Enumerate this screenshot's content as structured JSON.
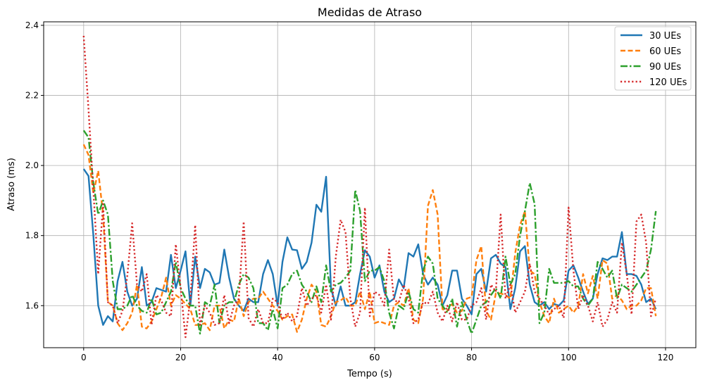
{
  "chart_data": {
    "type": "line",
    "title": "Medidas de Atraso",
    "xlabel": "Tempo (s)",
    "ylabel": "Atraso (ms)",
    "xlim": [
      -8.25,
      126.25
    ],
    "ylim": [
      1.48,
      2.41
    ],
    "xticks": [
      0,
      20,
      40,
      60,
      80,
      100,
      120
    ],
    "yticks": [
      1.6,
      1.8,
      2.0,
      2.2,
      2.4
    ],
    "grid": true,
    "legend_position": "top-right",
    "x": [
      0,
      1,
      2,
      3,
      4,
      5,
      6,
      7,
      8,
      9,
      10,
      11,
      12,
      13,
      14,
      15,
      16,
      17,
      18,
      19,
      20,
      21,
      22,
      23,
      24,
      25,
      26,
      27,
      28,
      29,
      30,
      31,
      32,
      33,
      34,
      35,
      36,
      37,
      38,
      39,
      40,
      41,
      42,
      43,
      44,
      45,
      46,
      47,
      48,
      49,
      50,
      51,
      52,
      53,
      54,
      55,
      56,
      57,
      58,
      59,
      60,
      61,
      62,
      63,
      64,
      65,
      66,
      67,
      68,
      69,
      70,
      71,
      72,
      73,
      74,
      75,
      76,
      77,
      78,
      79,
      80,
      81,
      82,
      83,
      84,
      85,
      86,
      87,
      88,
      89,
      90,
      91,
      92,
      93,
      94,
      95,
      96,
      97,
      98,
      99,
      100,
      101,
      102,
      103,
      104,
      105,
      106,
      107,
      108,
      109,
      110,
      111,
      112,
      113,
      114,
      115,
      116,
      117,
      118
    ],
    "series": [
      {
        "name": "30 UEs",
        "color": "#1f77b4",
        "dash": "solid",
        "values": [
          1.99,
          1.97,
          1.8,
          1.6,
          1.545,
          1.57,
          1.555,
          1.67,
          1.725,
          1.64,
          1.6,
          1.62,
          1.71,
          1.6,
          1.61,
          1.65,
          1.645,
          1.64,
          1.745,
          1.65,
          1.7,
          1.755,
          1.6,
          1.74,
          1.65,
          1.705,
          1.695,
          1.66,
          1.665,
          1.76,
          1.68,
          1.62,
          1.6,
          1.585,
          1.62,
          1.61,
          1.61,
          1.69,
          1.73,
          1.69,
          1.6,
          1.725,
          1.795,
          1.76,
          1.758,
          1.705,
          1.725,
          1.78,
          1.888,
          1.868,
          1.968,
          1.65,
          1.6,
          1.655,
          1.6,
          1.6,
          1.61,
          1.69,
          1.758,
          1.74,
          1.68,
          1.715,
          1.64,
          1.61,
          1.62,
          1.675,
          1.65,
          1.75,
          1.74,
          1.775,
          1.69,
          1.66,
          1.68,
          1.66,
          1.6,
          1.63,
          1.7,
          1.7,
          1.62,
          1.6,
          1.575,
          1.69,
          1.705,
          1.64,
          1.735,
          1.745,
          1.72,
          1.71,
          1.59,
          1.65,
          1.755,
          1.77,
          1.66,
          1.61,
          1.6,
          1.61,
          1.59,
          1.605,
          1.6,
          1.615,
          1.7,
          1.715,
          1.68,
          1.64,
          1.605,
          1.62,
          1.69,
          1.735,
          1.73,
          1.74,
          1.74,
          1.81,
          1.69,
          1.69,
          1.685,
          1.66,
          1.61,
          1.62,
          1.59
        ]
      },
      {
        "name": "60 UEs",
        "color": "#ff7f0e",
        "dash": "dashed",
        "values": [
          2.06,
          2.03,
          1.92,
          1.985,
          1.86,
          1.61,
          1.6,
          1.55,
          1.53,
          1.55,
          1.58,
          1.66,
          1.54,
          1.535,
          1.555,
          1.59,
          1.625,
          1.68,
          1.6,
          1.63,
          1.62,
          1.605,
          1.59,
          1.545,
          1.545,
          1.55,
          1.53,
          1.6,
          1.6,
          1.535,
          1.56,
          1.555,
          1.62,
          1.57,
          1.61,
          1.62,
          1.62,
          1.64,
          1.62,
          1.6,
          1.585,
          1.56,
          1.57,
          1.575,
          1.525,
          1.56,
          1.62,
          1.66,
          1.64,
          1.545,
          1.54,
          1.57,
          1.61,
          1.615,
          1.625,
          1.6,
          1.6,
          1.64,
          1.59,
          1.64,
          1.55,
          1.555,
          1.55,
          1.545,
          1.6,
          1.61,
          1.6,
          1.65,
          1.56,
          1.55,
          1.62,
          1.885,
          1.93,
          1.86,
          1.59,
          1.585,
          1.605,
          1.58,
          1.585,
          1.62,
          1.625,
          1.73,
          1.77,
          1.585,
          1.56,
          1.635,
          1.635,
          1.63,
          1.62,
          1.75,
          1.83,
          1.87,
          1.7,
          1.69,
          1.61,
          1.57,
          1.55,
          1.62,
          1.58,
          1.59,
          1.6,
          1.58,
          1.6,
          1.69,
          1.635,
          1.685,
          1.62,
          1.73,
          1.72,
          1.62,
          1.63,
          1.615,
          1.59,
          1.6,
          1.6,
          1.615,
          1.65,
          1.65,
          1.57
        ]
      },
      {
        "name": "90 UEs",
        "color": "#2ca02c",
        "dash": "dashdot",
        "values": [
          2.1,
          2.08,
          1.95,
          1.86,
          1.9,
          1.86,
          1.67,
          1.59,
          1.59,
          1.6,
          1.63,
          1.6,
          1.585,
          1.58,
          1.62,
          1.575,
          1.58,
          1.61,
          1.64,
          1.725,
          1.65,
          1.62,
          1.6,
          1.6,
          1.52,
          1.61,
          1.6,
          1.66,
          1.55,
          1.6,
          1.61,
          1.61,
          1.66,
          1.69,
          1.68,
          1.65,
          1.55,
          1.55,
          1.53,
          1.59,
          1.535,
          1.65,
          1.66,
          1.69,
          1.7,
          1.66,
          1.64,
          1.61,
          1.655,
          1.61,
          1.715,
          1.64,
          1.66,
          1.665,
          1.68,
          1.7,
          1.93,
          1.87,
          1.67,
          1.7,
          1.7,
          1.71,
          1.67,
          1.58,
          1.535,
          1.6,
          1.59,
          1.64,
          1.59,
          1.58,
          1.7,
          1.74,
          1.72,
          1.62,
          1.6,
          1.58,
          1.62,
          1.54,
          1.61,
          1.56,
          1.52,
          1.56,
          1.6,
          1.61,
          1.63,
          1.65,
          1.62,
          1.74,
          1.66,
          1.69,
          1.8,
          1.87,
          1.95,
          1.89,
          1.55,
          1.58,
          1.705,
          1.665,
          1.665,
          1.665,
          1.67,
          1.655,
          1.655,
          1.62,
          1.6,
          1.62,
          1.725,
          1.705,
          1.68,
          1.7,
          1.62,
          1.66,
          1.65,
          1.64,
          1.66,
          1.68,
          1.7,
          1.76,
          1.87
        ]
      },
      {
        "name": "120 UEs",
        "color": "#d62728",
        "dash": "dotted",
        "values": [
          2.37,
          2.16,
          1.93,
          1.69,
          1.89,
          1.61,
          1.6,
          1.55,
          1.585,
          1.685,
          1.835,
          1.66,
          1.64,
          1.69,
          1.545,
          1.63,
          1.615,
          1.58,
          1.57,
          1.775,
          1.65,
          1.51,
          1.62,
          1.83,
          1.545,
          1.6,
          1.58,
          1.545,
          1.55,
          1.63,
          1.55,
          1.6,
          1.62,
          1.84,
          1.565,
          1.54,
          1.59,
          1.55,
          1.55,
          1.62,
          1.61,
          1.56,
          1.58,
          1.555,
          1.57,
          1.65,
          1.6,
          1.62,
          1.63,
          1.58,
          1.66,
          1.56,
          1.74,
          1.845,
          1.81,
          1.62,
          1.54,
          1.58,
          1.88,
          1.57,
          1.64,
          1.63,
          1.6,
          1.76,
          1.615,
          1.61,
          1.66,
          1.62,
          1.55,
          1.56,
          1.61,
          1.605,
          1.64,
          1.58,
          1.555,
          1.6,
          1.555,
          1.61,
          1.56,
          1.56,
          1.6,
          1.61,
          1.65,
          1.56,
          1.66,
          1.64,
          1.86,
          1.62,
          1.66,
          1.58,
          1.61,
          1.64,
          1.72,
          1.64,
          1.62,
          1.6,
          1.575,
          1.59,
          1.6,
          1.565,
          1.88,
          1.7,
          1.59,
          1.63,
          1.6,
          1.555,
          1.61,
          1.54,
          1.56,
          1.61,
          1.58,
          1.78,
          1.69,
          1.575,
          1.84,
          1.86,
          1.78,
          1.57,
          1.62
        ]
      }
    ]
  }
}
